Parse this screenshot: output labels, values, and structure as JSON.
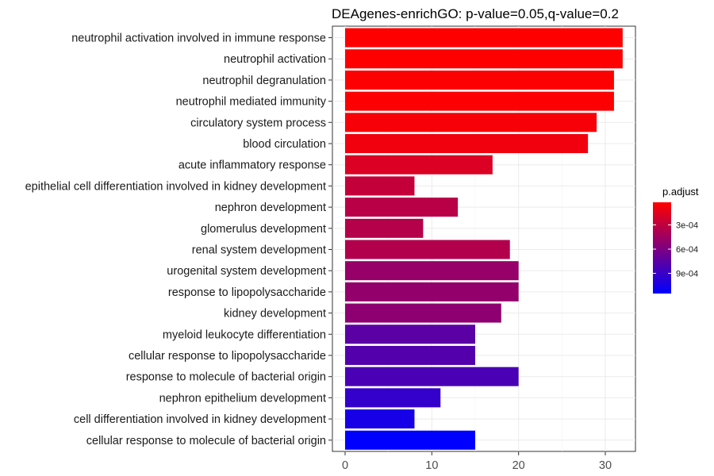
{
  "chart_data": {
    "type": "bar",
    "orientation": "horizontal",
    "title": "DEAgenes-enrichGO: p-value=0.05,q-value=0.2",
    "xlabel": "",
    "ylabel": "",
    "xlim": [
      0,
      33.5
    ],
    "x_ticks": [
      0,
      10,
      20,
      30
    ],
    "grid": true,
    "legend_position": "right",
    "categories": [
      "neutrophil activation involved in immune response",
      "neutrophil activation",
      "neutrophil degranulation",
      "neutrophil mediated immunity",
      "circulatory system process",
      "blood circulation",
      "acute inflammatory response",
      "epithelial cell differentiation involved in kidney development",
      "nephron development",
      "glomerulus development",
      "renal system development",
      "urogenital system development",
      "response to lipopolysaccharide",
      "kidney development",
      "myeloid leukocyte differentiation",
      "cellular response to lipopolysaccharide",
      "response to molecule of bacterial origin",
      "nephron epithelium development",
      "cell differentiation involved in kidney development",
      "cellular response to molecule of bacterial origin"
    ],
    "values": [
      32,
      32,
      31,
      31,
      29,
      28,
      17,
      8,
      13,
      9,
      19,
      20,
      20,
      18,
      15,
      15,
      20,
      11,
      8,
      15
    ],
    "color_values": [
      2e-05,
      2e-05,
      3e-05,
      3e-05,
      5e-05,
      8e-05,
      0.00018,
      0.00028,
      0.00033,
      0.00035,
      0.00036,
      0.00048,
      0.0005,
      0.00052,
      0.00075,
      0.00078,
      0.00082,
      0.00092,
      0.00105,
      0.00115
    ],
    "color_scale": {
      "name": "p.adjust",
      "low_color": "#FF0000",
      "high_color": "#0000FF",
      "domain": [
        2e-05,
        0.00115
      ],
      "ticks": [
        0.0003,
        0.0006,
        0.0009
      ],
      "tick_labels": [
        "3e-04",
        "6e-04",
        "9e-04"
      ]
    }
  }
}
